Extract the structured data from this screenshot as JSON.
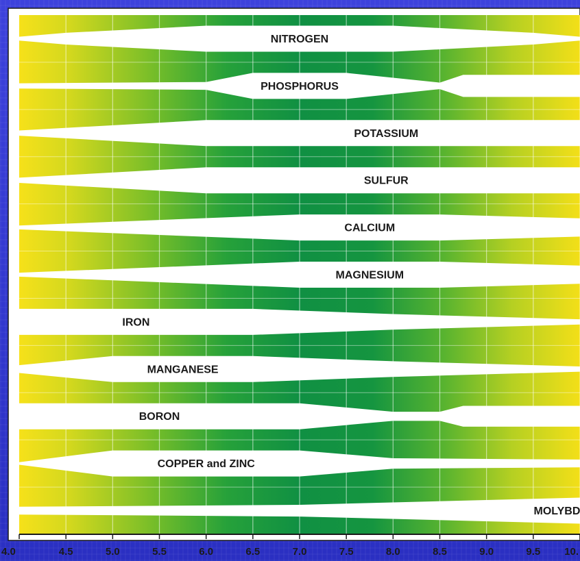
{
  "chart_data": {
    "type": "area",
    "title": "",
    "xlabel": "",
    "ylabel": "",
    "xlim": [
      4.0,
      10.0
    ],
    "grid": true,
    "x_ticks": [
      4.0,
      4.5,
      5.0,
      5.5,
      6.0,
      6.5,
      7.0,
      7.5,
      8.0,
      8.5,
      9.0,
      9.5,
      10.0
    ],
    "x_tick_labels": [
      "4.0",
      "4.5",
      "5.0",
      "5.5",
      "6.0",
      "6.5",
      "7.0",
      "7.5",
      "8.0",
      "8.5",
      "9.0",
      "9.5",
      "10."
    ],
    "value_description": "relative nutrient availability, 0 to 1",
    "series": [
      {
        "name": "NITROGEN",
        "x": [
          4.0,
          4.5,
          6.0,
          8.0,
          9.5,
          10.0
        ],
        "values": [
          0.15,
          0.45,
          1.0,
          1.0,
          0.45,
          0.15
        ]
      },
      {
        "name": "PHOSPHORUS",
        "x": [
          4.0,
          6.0,
          6.5,
          7.5,
          8.5,
          8.75,
          10.0
        ],
        "values": [
          0.2,
          0.3,
          1.0,
          1.0,
          0.25,
          0.85,
          0.85
        ]
      },
      {
        "name": "POTASSIUM",
        "x": [
          4.0,
          6.0,
          10.0
        ],
        "values": [
          0.2,
          1.0,
          1.0
        ]
      },
      {
        "name": "SULFUR",
        "x": [
          4.0,
          6.0,
          10.0
        ],
        "values": [
          0.2,
          1.0,
          1.0
        ]
      },
      {
        "name": "CALCIUM",
        "x": [
          4.0,
          7.0,
          8.5,
          10.0
        ],
        "values": [
          0.15,
          1.0,
          1.0,
          0.7
        ]
      },
      {
        "name": "MAGNESIUM",
        "x": [
          4.0,
          7.0,
          8.5,
          10.0
        ],
        "values": [
          0.15,
          1.0,
          1.0,
          0.7
        ]
      },
      {
        "name": "IRON",
        "x": [
          4.0,
          6.5,
          8.0,
          10.0
        ],
        "values": [
          1.0,
          1.0,
          0.6,
          0.2
        ]
      },
      {
        "name": "MANGANESE",
        "x": [
          4.0,
          5.0,
          6.5,
          8.0,
          10.0
        ],
        "values": [
          0.3,
          1.0,
          1.0,
          0.6,
          0.2
        ]
      },
      {
        "name": "BORON",
        "x": [
          4.0,
          7.0,
          8.0,
          8.5,
          8.75,
          10.0
        ],
        "values": [
          1.0,
          1.0,
          0.35,
          0.35,
          0.8,
          0.8
        ]
      },
      {
        "name": "COPPER and ZINC",
        "x": [
          4.0,
          5.0,
          7.0,
          8.0,
          10.0
        ],
        "values": [
          0.1,
          1.0,
          1.0,
          0.4,
          0.3
        ]
      },
      {
        "name": "MOLYBDENUM",
        "x": [
          4.0,
          7.0,
          10.0
        ],
        "values": [
          0.3,
          0.45,
          1.0
        ]
      }
    ]
  }
}
